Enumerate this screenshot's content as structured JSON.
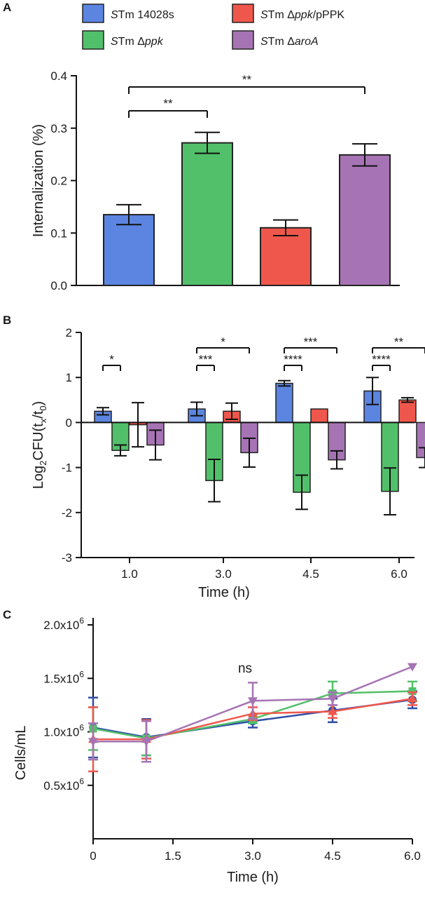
{
  "figure": {
    "legend": [
      {
        "key": "wt",
        "prefix": "S",
        "label": "Tm 14028s",
        "color": "#5b85e0"
      },
      {
        "key": "ppk",
        "prefix": "S",
        "label": "Tm Δ",
        "italic": "ppk",
        "suffix": "",
        "color": "#52c06a"
      },
      {
        "key": "comp",
        "prefix": "S",
        "label": "Tm Δ",
        "italic": "ppk",
        "suffix": "/pPPK",
        "color": "#f0574c"
      },
      {
        "key": "aroA",
        "prefix": "S",
        "label": "Tm Δ",
        "italic": "aroA",
        "suffix": "",
        "color": "#a674b4"
      }
    ]
  },
  "chart_data": [
    {
      "panel": "A",
      "type": "bar",
      "ylabel": "Internalization (%)",
      "xlabel": "",
      "ylim": [
        0,
        0.4
      ],
      "yticks": [
        "0.0",
        "0.1",
        "0.2",
        "0.3",
        "0.4"
      ],
      "categories": [
        "STm 14028s",
        "STm Δppk",
        "STm Δppk/pPPK",
        "STm ΔaroA"
      ],
      "values": [
        0.135,
        0.272,
        0.11,
        0.249
      ],
      "errors": [
        0.019,
        0.02,
        0.015,
        0.021
      ],
      "colors": [
        "#5b85e0",
        "#52c06a",
        "#f0574c",
        "#a674b4"
      ],
      "significance": [
        {
          "from": 0,
          "to": 1,
          "label": "**"
        },
        {
          "from": 0,
          "to": 3,
          "label": "**"
        }
      ]
    },
    {
      "panel": "B",
      "type": "bar",
      "ylabel": "Log2CFU(tx/t0)",
      "xlabel": "Time (h)",
      "ylim": [
        -3,
        2
      ],
      "yticks": [
        "-3",
        "-2",
        "-1",
        "0",
        "1",
        "2"
      ],
      "categories": [
        "1.0",
        "3.0",
        "4.5",
        "6.0"
      ],
      "series": [
        {
          "name": "STm 14028s",
          "color": "#5b85e0",
          "values": [
            0.25,
            0.3,
            0.87,
            0.7
          ],
          "errors": [
            0.08,
            0.15,
            0.06,
            0.3
          ]
        },
        {
          "name": "STm Δppk",
          "color": "#52c06a",
          "values": [
            -0.62,
            -1.29,
            -1.55,
            -1.53
          ],
          "errors": [
            0.12,
            0.47,
            0.38,
            0.52
          ]
        },
        {
          "name": "STm Δppk/pPPK",
          "color": "#f0574c",
          "values": [
            -0.05,
            0.25,
            0.3,
            0.5
          ],
          "errors": [
            0.49,
            0.18,
            0.0,
            0.05
          ]
        },
        {
          "name": "STm ΔaroA",
          "color": "#a674b4",
          "values": [
            -0.5,
            -0.67,
            -0.83,
            -0.78
          ],
          "errors": [
            0.33,
            0.32,
            0.2,
            0.22
          ]
        }
      ],
      "significance": [
        {
          "group": 0,
          "from": 0,
          "to": 1,
          "label": "*"
        },
        {
          "group": 1,
          "from": 0,
          "to": 1,
          "label": "***"
        },
        {
          "group": 1,
          "from": 0,
          "to": 3,
          "label": "*"
        },
        {
          "group": 2,
          "from": 0,
          "to": 1,
          "label": "****"
        },
        {
          "group": 2,
          "from": 0,
          "to": 3,
          "label": "***"
        },
        {
          "group": 3,
          "from": 0,
          "to": 1,
          "label": "****"
        },
        {
          "group": 3,
          "from": 0,
          "to": 3,
          "label": "**"
        }
      ]
    },
    {
      "panel": "C",
      "type": "line",
      "ylabel": "Cells/mL",
      "xlabel": "Time (h)",
      "xlim": [
        0,
        6
      ],
      "ylim": [
        0,
        2000000
      ],
      "xticks": [
        "0",
        "1.5",
        "3.0",
        "4.5",
        "6.0"
      ],
      "yticks": [
        {
          "value": 500000,
          "mantissa": "0.5x10",
          "exp": "6"
        },
        {
          "value": 1000000,
          "mantissa": "1.0x10",
          "exp": "6"
        },
        {
          "value": 1500000,
          "mantissa": "1.5x10",
          "exp": "6"
        },
        {
          "value": 2000000,
          "mantissa": "2.0x10",
          "exp": "6"
        }
      ],
      "annotation": "ns",
      "x": [
        0,
        1,
        3,
        4.5,
        6
      ],
      "series": [
        {
          "name": "STm 14028s",
          "color": "#2f4fa8",
          "marker": "circle",
          "values": [
            1040000,
            950000,
            1100000,
            1200000,
            1300000
          ],
          "errors": [
            280000,
            170000,
            60000,
            110000,
            80000
          ]
        },
        {
          "name": "STm Δppk",
          "color": "#52c06a",
          "marker": "square",
          "values": [
            1030000,
            940000,
            1120000,
            1360000,
            1380000
          ],
          "errors": [
            200000,
            160000,
            40000,
            110000,
            90000
          ]
        },
        {
          "name": "STm Δppk/pPPK",
          "color": "#f0574c",
          "marker": "triangle",
          "values": [
            930000,
            930000,
            1170000,
            1190000,
            1310000
          ],
          "errors": [
            300000,
            180000,
            60000,
            60000,
            60000
          ]
        },
        {
          "name": "STm ΔaroA",
          "color": "#a674b4",
          "marker": "triangle-down",
          "values": [
            910000,
            910000,
            1290000,
            1310000,
            1610000
          ],
          "errors": [
            170000,
            190000,
            170000,
            60000,
            0
          ]
        }
      ]
    }
  ]
}
